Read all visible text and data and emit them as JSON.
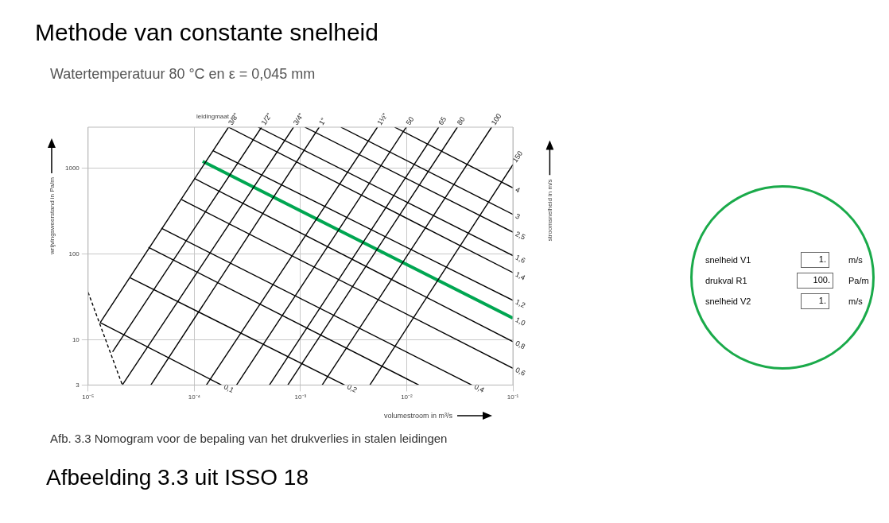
{
  "chart_data": {
    "type": "line",
    "title": "Methode van constante snelheid",
    "subtitle": "Watertemperatuur 80 °C en ε = 0,045 mm",
    "xlabel": "volumestroom in m³/s",
    "ylabel": "wrijvingsweerstand in Pa/m",
    "y2label": "stroomsnelheid in m/s",
    "annotations": [
      "leidingmaat",
      "Afb. 3.3 Nomogram voor de bepaling van het drukverlies in stalen leidingen",
      "Afbeelding 3.3 uit ISSO 18",
      "snelheid V1",
      "1.",
      "m/s",
      "drukval  R1",
      "100.",
      "Pa/m",
      "snelheid V2",
      "1.",
      "m/s"
    ],
    "log": "xy",
    "xlim": [
      1e-05,
      0.1
    ],
    "ylim": [
      3,
      3000
    ],
    "xticks": [
      {
        "value": 1e-05,
        "label": "10⁻⁵"
      },
      {
        "value": 0.0001,
        "label": "10⁻⁴"
      },
      {
        "value": 0.001,
        "label": "10⁻³"
      },
      {
        "value": 0.01,
        "label": "10⁻²"
      },
      {
        "value": 0.1,
        "label": "10⁻¹"
      }
    ],
    "yticks": [
      3,
      10,
      100,
      1000
    ],
    "grid": true,
    "legend": false,
    "marker": "none",
    "line_style": "solid",
    "series": [
      {
        "name": "3/8\"",
        "color": "#000000",
        "x": [
          1.3e-05,
          0.00021
        ],
        "values": [
          16,
          3000
        ]
      },
      {
        "name": "1/2\"",
        "color": "#000000",
        "x": [
          1.7e-05,
          0.00043
        ],
        "values": [
          7.3,
          3000
        ]
      },
      {
        "name": "3/4\"",
        "color": "#000000",
        "x": [
          2.1e-05,
          0.00086
        ],
        "values": [
          3,
          3000
        ]
      },
      {
        "name": "1\"",
        "color": "#000000",
        "x": [
          3.9e-05,
          0.0015
        ],
        "values": [
          3,
          3000
        ]
      },
      {
        "name": "1½\"",
        "color": "#000000",
        "x": [
          0.00013,
          0.0053
        ],
        "values": [
          3,
          3000
        ]
      },
      {
        "name": "50",
        "color": "#000000",
        "x": [
          0.00025,
          0.0099
        ],
        "values": [
          3,
          3000
        ]
      },
      {
        "name": "65",
        "color": "#000000",
        "x": [
          0.00051,
          0.02
        ],
        "values": [
          3,
          3000
        ]
      },
      {
        "name": "80",
        "color": "#000000",
        "x": [
          0.00076,
          0.03
        ],
        "values": [
          3,
          3000
        ]
      },
      {
        "name": "100",
        "color": "#000000",
        "x": [
          0.0016,
          0.063
        ],
        "values": [
          3,
          3000
        ]
      },
      {
        "name": "150",
        "color": "#000000",
        "x": [
          0.0045,
          0.1
        ],
        "values": [
          3,
          1100
        ]
      },
      {
        "name": "4",
        "color": "#000000",
        "x": [
          0.0077,
          0.1
        ],
        "values": [
          3000,
          590
        ]
      },
      {
        "name": "3",
        "color": "#000000",
        "x": [
          0.0024,
          0.1
        ],
        "values": [
          3000,
          290
        ]
      },
      {
        "name": "2,5",
        "color": "#000000",
        "x": [
          0.0011,
          0.1
        ],
        "values": [
          3000,
          180
        ]
      },
      {
        "name": "1,6",
        "color": "#000000",
        "x": [
          0.0004,
          0.1
        ],
        "values": [
          3000,
          96
        ]
      },
      {
        "name": "1,4",
        "color": "#000000",
        "x": [
          0.00021,
          0.1
        ],
        "values": [
          3000,
          61
        ]
      },
      {
        "name": "1,2",
        "color": "#000000",
        "x": [
          0.00015,
          0.1
        ],
        "values": [
          1600,
          29
        ]
      },
      {
        "name": "1,0",
        "color": "#00a651",
        "x": [
          0.00012,
          0.1
        ],
        "values": [
          1200,
          18
        ]
      },
      {
        "name": "0,8",
        "color": "#000000",
        "x": [
          0.0001,
          0.1
        ],
        "values": [
          760,
          9.6
        ]
      },
      {
        "name": "0,6",
        "color": "#000000",
        "x": [
          7.6e-05,
          0.1
        ],
        "values": [
          430,
          4.7
        ]
      },
      {
        "name": "0,4",
        "color": "#000000",
        "x": [
          4.9e-05,
          0.041
        ],
        "values": [
          200,
          3
        ]
      },
      {
        "color": "#000000",
        "x": [
          3.7e-05,
          0.013
        ],
        "values": [
          120,
          3
        ]
      },
      {
        "name": "0,2",
        "color": "#000000",
        "x": [
          2.5e-05,
          0.0026
        ],
        "values": [
          53,
          3
        ]
      },
      {
        "name": "0,1",
        "color": "#000000",
        "x": [
          1.3e-05,
          0.00018
        ],
        "values": [
          16,
          3
        ]
      },
      {
        "color": "#000000",
        "line_style": "dashed",
        "x": [
          1e-05,
          2.1e-05
        ],
        "values": [
          36,
          3
        ]
      }
    ]
  }
}
